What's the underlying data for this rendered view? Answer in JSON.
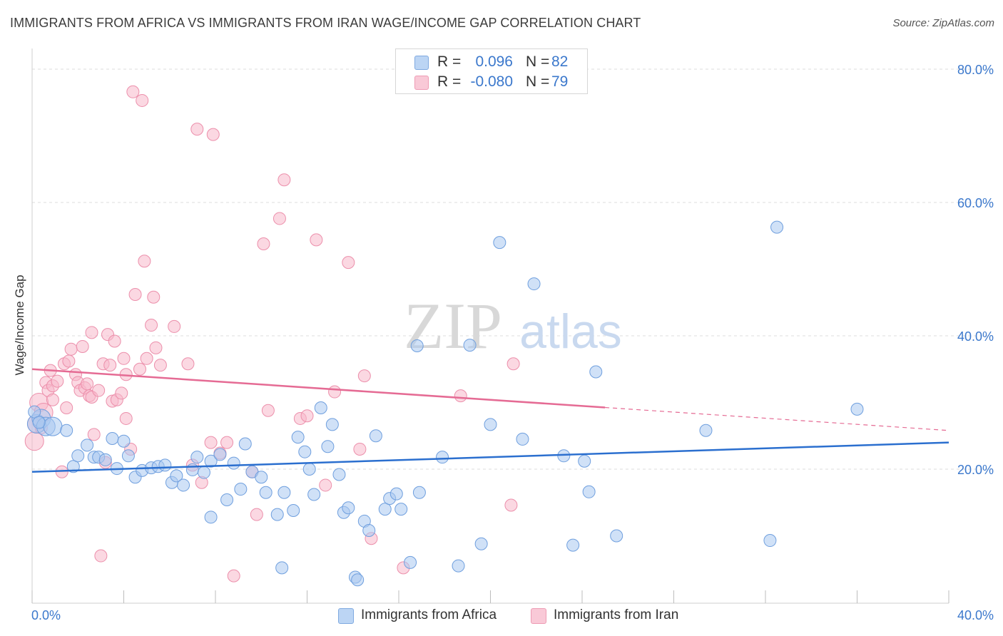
{
  "header": {
    "title": "IMMIGRANTS FROM AFRICA VS IMMIGRANTS FROM IRAN WAGE/INCOME GAP CORRELATION CHART",
    "source": "Source: ZipAtlas.com"
  },
  "legend": {
    "rows": [
      {
        "r_label": "R =",
        "r_value": "0.096",
        "n_label": "N =",
        "n_value": "82",
        "color": "#a9c8f0"
      },
      {
        "r_label": "R =",
        "r_value": "-0.080",
        "n_label": "N =",
        "n_value": "79",
        "color": "#f7b8cb"
      }
    ]
  },
  "bottom_legend": {
    "africa": "Immigrants from Africa",
    "iran": "Immigrants from Iran"
  },
  "watermark": {
    "zip": "ZIP",
    "atlas": "atlas"
  },
  "colors": {
    "africa_fill": "#a9c8f0",
    "africa_stroke": "#6f9fde",
    "africa_line": "#2b6fcf",
    "iran_fill": "#f7b8cb",
    "iran_stroke": "#ec8fab",
    "iran_line": "#e56b94",
    "tick_label": "#3b78cc",
    "grid": "#dddddd"
  },
  "chart_data": {
    "type": "scatter",
    "title": "IMMIGRANTS FROM AFRICA VS IMMIGRANTS FROM IRAN WAGE/INCOME GAP CORRELATION CHART",
    "xlabel": "",
    "ylabel": "Wage/Income Gap",
    "xlim": [
      0,
      40
    ],
    "ylim": [
      0,
      80
    ],
    "x_tick_labels": [
      "0.0%",
      "40.0%"
    ],
    "y_ticks": [
      20,
      40,
      60,
      80
    ],
    "y_tick_labels": [
      "20.0%",
      "40.0%",
      "60.0%",
      "80.0%"
    ],
    "grid": true,
    "legend_position": "top-center",
    "series": [
      {
        "name": "Immigrants from Africa",
        "R": 0.096,
        "N": 82,
        "trend": {
          "x0": 0,
          "y0": 19.6,
          "x1": 40,
          "y1": 24.0,
          "solid_to": 40
        },
        "points": [
          [
            0.2,
            26.8
          ],
          [
            0.4,
            27.6
          ],
          [
            0.6,
            26.4
          ],
          [
            0.9,
            26.4
          ],
          [
            1.5,
            25.8
          ],
          [
            1.8,
            20.4
          ],
          [
            2.0,
            22.0
          ],
          [
            2.4,
            23.6
          ],
          [
            2.7,
            21.8
          ],
          [
            2.9,
            21.8
          ],
          [
            3.2,
            21.4
          ],
          [
            3.5,
            24.6
          ],
          [
            3.7,
            20.1
          ],
          [
            4.0,
            24.2
          ],
          [
            4.2,
            22.0
          ],
          [
            4.5,
            18.8
          ],
          [
            4.8,
            19.8
          ],
          [
            5.2,
            20.2
          ],
          [
            5.5,
            20.4
          ],
          [
            5.8,
            20.6
          ],
          [
            6.1,
            18.0
          ],
          [
            6.3,
            19.0
          ],
          [
            6.6,
            17.6
          ],
          [
            7.0,
            19.9
          ],
          [
            7.2,
            21.8
          ],
          [
            7.5,
            19.5
          ],
          [
            7.8,
            21.2
          ],
          [
            7.8,
            12.8
          ],
          [
            8.2,
            22.2
          ],
          [
            8.5,
            15.4
          ],
          [
            8.8,
            20.9
          ],
          [
            9.1,
            17.0
          ],
          [
            9.3,
            23.8
          ],
          [
            9.6,
            19.6
          ],
          [
            10.0,
            18.8
          ],
          [
            10.2,
            16.5
          ],
          [
            10.7,
            13.2
          ],
          [
            10.9,
            5.2
          ],
          [
            11.0,
            16.5
          ],
          [
            11.4,
            13.8
          ],
          [
            11.6,
            24.8
          ],
          [
            11.9,
            22.6
          ],
          [
            12.1,
            20.0
          ],
          [
            12.3,
            16.2
          ],
          [
            12.6,
            29.2
          ],
          [
            12.9,
            23.4
          ],
          [
            13.1,
            26.7
          ],
          [
            13.4,
            19.2
          ],
          [
            13.6,
            13.5
          ],
          [
            13.8,
            14.2
          ],
          [
            14.1,
            3.8
          ],
          [
            14.2,
            3.4
          ],
          [
            14.5,
            12.2
          ],
          [
            14.7,
            10.8
          ],
          [
            15.0,
            25.0
          ],
          [
            15.4,
            14.0
          ],
          [
            15.6,
            15.6
          ],
          [
            15.9,
            16.3
          ],
          [
            16.1,
            14.0
          ],
          [
            16.5,
            6.0
          ],
          [
            16.8,
            38.5
          ],
          [
            16.9,
            16.5
          ],
          [
            17.9,
            21.8
          ],
          [
            18.6,
            5.5
          ],
          [
            19.1,
            38.6
          ],
          [
            19.6,
            8.8
          ],
          [
            20.0,
            26.7
          ],
          [
            20.4,
            54.0
          ],
          [
            21.4,
            24.5
          ],
          [
            21.9,
            47.8
          ],
          [
            23.2,
            22.0
          ],
          [
            23.6,
            8.6
          ],
          [
            24.1,
            21.2
          ],
          [
            24.3,
            16.6
          ],
          [
            24.6,
            34.6
          ],
          [
            25.5,
            10.0
          ],
          [
            29.4,
            25.8
          ],
          [
            32.2,
            9.3
          ],
          [
            32.5,
            56.3
          ],
          [
            36.0,
            29.0
          ],
          [
            0.1,
            28.6
          ],
          [
            0.3,
            27.0
          ]
        ]
      },
      {
        "name": "Immigrants from Iran",
        "R": -0.08,
        "N": 79,
        "trend": {
          "x0": 0,
          "y0": 35.0,
          "x1": 40,
          "y1": 25.8,
          "solid_to": 25.0
        },
        "points": [
          [
            0.1,
            24.2
          ],
          [
            0.2,
            26.8
          ],
          [
            0.3,
            30.0
          ],
          [
            0.5,
            28.5
          ],
          [
            0.6,
            33.0
          ],
          [
            0.7,
            31.8
          ],
          [
            0.8,
            34.8
          ],
          [
            0.9,
            32.5
          ],
          [
            1.1,
            33.2
          ],
          [
            1.3,
            19.6
          ],
          [
            1.4,
            35.8
          ],
          [
            1.5,
            29.2
          ],
          [
            1.6,
            36.2
          ],
          [
            1.7,
            38.0
          ],
          [
            1.9,
            34.2
          ],
          [
            2.0,
            33.0
          ],
          [
            2.1,
            31.8
          ],
          [
            2.2,
            38.4
          ],
          [
            2.3,
            32.2
          ],
          [
            2.4,
            32.8
          ],
          [
            2.5,
            31.0
          ],
          [
            2.6,
            30.8
          ],
          [
            2.6,
            40.5
          ],
          [
            2.7,
            25.2
          ],
          [
            2.9,
            31.8
          ],
          [
            3.0,
            7.0
          ],
          [
            3.1,
            35.8
          ],
          [
            3.2,
            21.0
          ],
          [
            3.3,
            40.2
          ],
          [
            3.4,
            35.6
          ],
          [
            3.5,
            30.2
          ],
          [
            3.6,
            39.2
          ],
          [
            3.7,
            30.4
          ],
          [
            3.9,
            31.4
          ],
          [
            4.0,
            36.6
          ],
          [
            4.1,
            34.2
          ],
          [
            4.1,
            27.6
          ],
          [
            4.3,
            23.0
          ],
          [
            4.4,
            76.6
          ],
          [
            4.5,
            46.2
          ],
          [
            4.7,
            35.0
          ],
          [
            4.8,
            75.3
          ],
          [
            4.9,
            51.2
          ],
          [
            5.0,
            36.6
          ],
          [
            5.2,
            41.6
          ],
          [
            5.3,
            45.8
          ],
          [
            5.4,
            38.2
          ],
          [
            5.6,
            35.6
          ],
          [
            6.2,
            41.4
          ],
          [
            6.8,
            35.8
          ],
          [
            7.0,
            20.6
          ],
          [
            7.2,
            71.0
          ],
          [
            7.4,
            18.0
          ],
          [
            7.8,
            24.0
          ],
          [
            7.9,
            70.2
          ],
          [
            8.2,
            22.4
          ],
          [
            8.5,
            24.0
          ],
          [
            8.8,
            4.0
          ],
          [
            9.6,
            19.6
          ],
          [
            9.8,
            13.2
          ],
          [
            10.1,
            53.8
          ],
          [
            10.3,
            28.8
          ],
          [
            10.8,
            57.6
          ],
          [
            11.0,
            63.4
          ],
          [
            11.7,
            27.6
          ],
          [
            12.0,
            28.0
          ],
          [
            12.4,
            54.4
          ],
          [
            12.8,
            17.6
          ],
          [
            13.2,
            31.6
          ],
          [
            13.8,
            51.0
          ],
          [
            14.3,
            23.0
          ],
          [
            14.5,
            34.0
          ],
          [
            14.8,
            9.6
          ],
          [
            16.2,
            5.2
          ],
          [
            18.7,
            31.0
          ],
          [
            20.9,
            14.6
          ],
          [
            21.0,
            35.8
          ],
          [
            0.4,
            26.2
          ],
          [
            0.9,
            30.4
          ]
        ]
      }
    ]
  }
}
